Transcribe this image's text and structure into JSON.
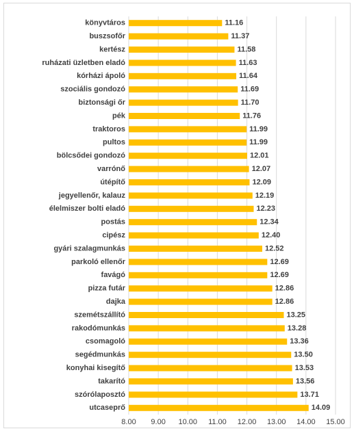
{
  "chart_data": {
    "type": "bar",
    "categories": [
      "könyvtáros",
      "buszsofőr",
      "kertész",
      "ruházati üzletben eladó",
      "kórházi ápoló",
      "szociális gondozó",
      "biztonsági őr",
      "pék",
      "traktoros",
      "pultos",
      "bölcsődei gondozó",
      "varrónő",
      "útépítő",
      "jegyellenőr, kalauz",
      "élelmiszer bolti eladó",
      "postás",
      "cipész",
      "gyári szalagmunkás",
      "parkoló ellenőr",
      "favágó",
      "pizza futár",
      "dajka",
      "szemétszállító",
      "rakodómunkás",
      "csomagoló",
      "segédmunkás",
      "konyhai kisegítő",
      "takarító",
      "szórólaposztó",
      "utcaseprő"
    ],
    "values": [
      11.16,
      11.37,
      11.58,
      11.63,
      11.64,
      11.69,
      11.7,
      11.76,
      11.99,
      11.99,
      12.01,
      12.07,
      12.09,
      12.19,
      12.23,
      12.34,
      12.4,
      12.52,
      12.69,
      12.69,
      12.86,
      12.86,
      13.25,
      13.28,
      13.36,
      13.5,
      13.53,
      13.56,
      13.71,
      14.09
    ],
    "value_labels": [
      "11.16",
      "11.37",
      "11.58",
      "11.63",
      "11.64",
      "11.69",
      "11.70",
      "11.76",
      "11.99",
      "11.99",
      "12.01",
      "12.07",
      "12.09",
      "12.19",
      "12.23",
      "12.34",
      "12.40",
      "12.52",
      "12.69",
      "12.69",
      "12.86",
      "12.86",
      "13.25",
      "13.28",
      "13.36",
      "13.50",
      "13.53",
      "13.56",
      "13.71",
      "14.09"
    ],
    "color": "#ffc000",
    "xlim": [
      8,
      15
    ],
    "xticks": [
      {
        "value": 8,
        "label": "8.00"
      },
      {
        "value": 9,
        "label": "9.00"
      },
      {
        "value": 10,
        "label": "10.00"
      },
      {
        "value": 11,
        "label": "11.00"
      },
      {
        "value": 12,
        "label": "12.00"
      },
      {
        "value": 13,
        "label": "13.00"
      },
      {
        "value": 14,
        "label": "14.00"
      },
      {
        "value": 15,
        "label": "15.00"
      }
    ],
    "grid": true
  }
}
